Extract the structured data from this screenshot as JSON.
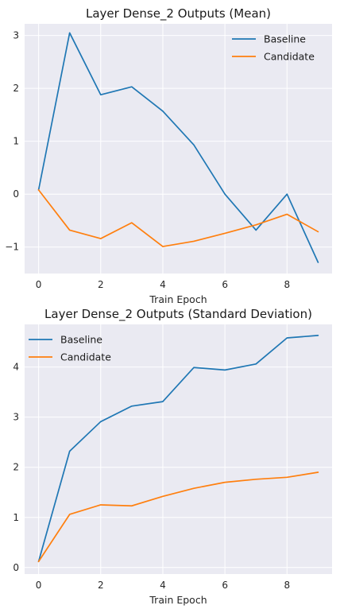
{
  "chart_data": [
    {
      "type": "line",
      "title": "Layer Dense_2 Outputs (Mean)",
      "xlabel": "Train Epoch",
      "ylabel": "",
      "xlim": [
        -0.45,
        9.45
      ],
      "ylim": [
        -1.5,
        3.22
      ],
      "x_ticks": [
        0,
        2,
        4,
        6,
        8
      ],
      "y_ticks": [
        -1,
        0,
        1,
        2,
        3
      ],
      "y_tick_labels": [
        "−1",
        "0",
        "1",
        "2",
        "3"
      ],
      "grid": true,
      "legend_position": "upper right",
      "x": [
        0,
        1,
        2,
        3,
        4,
        5,
        6,
        7,
        8,
        9
      ],
      "series": [
        {
          "name": "Baseline",
          "color": "#1f77b4",
          "values": [
            0.08,
            3.05,
            1.88,
            2.03,
            1.57,
            0.93,
            0.0,
            -0.68,
            0.0,
            -1.29
          ]
        },
        {
          "name": "Candidate",
          "color": "#ff7f0e",
          "values": [
            0.08,
            -0.68,
            -0.84,
            -0.54,
            -0.99,
            -0.89,
            -0.74,
            -0.58,
            -0.38,
            -0.71
          ]
        }
      ]
    },
    {
      "type": "line",
      "title": "Layer Dense_2 Outputs (Standard Deviation)",
      "xlabel": "Train Epoch",
      "ylabel": "",
      "xlim": [
        -0.45,
        9.45
      ],
      "ylim": [
        -0.13,
        4.85
      ],
      "x_ticks": [
        0,
        2,
        4,
        6,
        8
      ],
      "y_ticks": [
        0,
        1,
        2,
        3,
        4
      ],
      "y_tick_labels": [
        "0",
        "1",
        "2",
        "3",
        "4"
      ],
      "grid": true,
      "legend_position": "upper left",
      "x": [
        0,
        1,
        2,
        3,
        4,
        5,
        6,
        7,
        8,
        9
      ],
      "series": [
        {
          "name": "Baseline",
          "color": "#1f77b4",
          "values": [
            0.12,
            2.32,
            2.91,
            3.22,
            3.31,
            3.99,
            3.94,
            4.06,
            4.58,
            4.63
          ]
        },
        {
          "name": "Candidate",
          "color": "#ff7f0e",
          "values": [
            0.12,
            1.06,
            1.25,
            1.23,
            1.42,
            1.58,
            1.7,
            1.76,
            1.8,
            1.9
          ]
        }
      ]
    }
  ]
}
